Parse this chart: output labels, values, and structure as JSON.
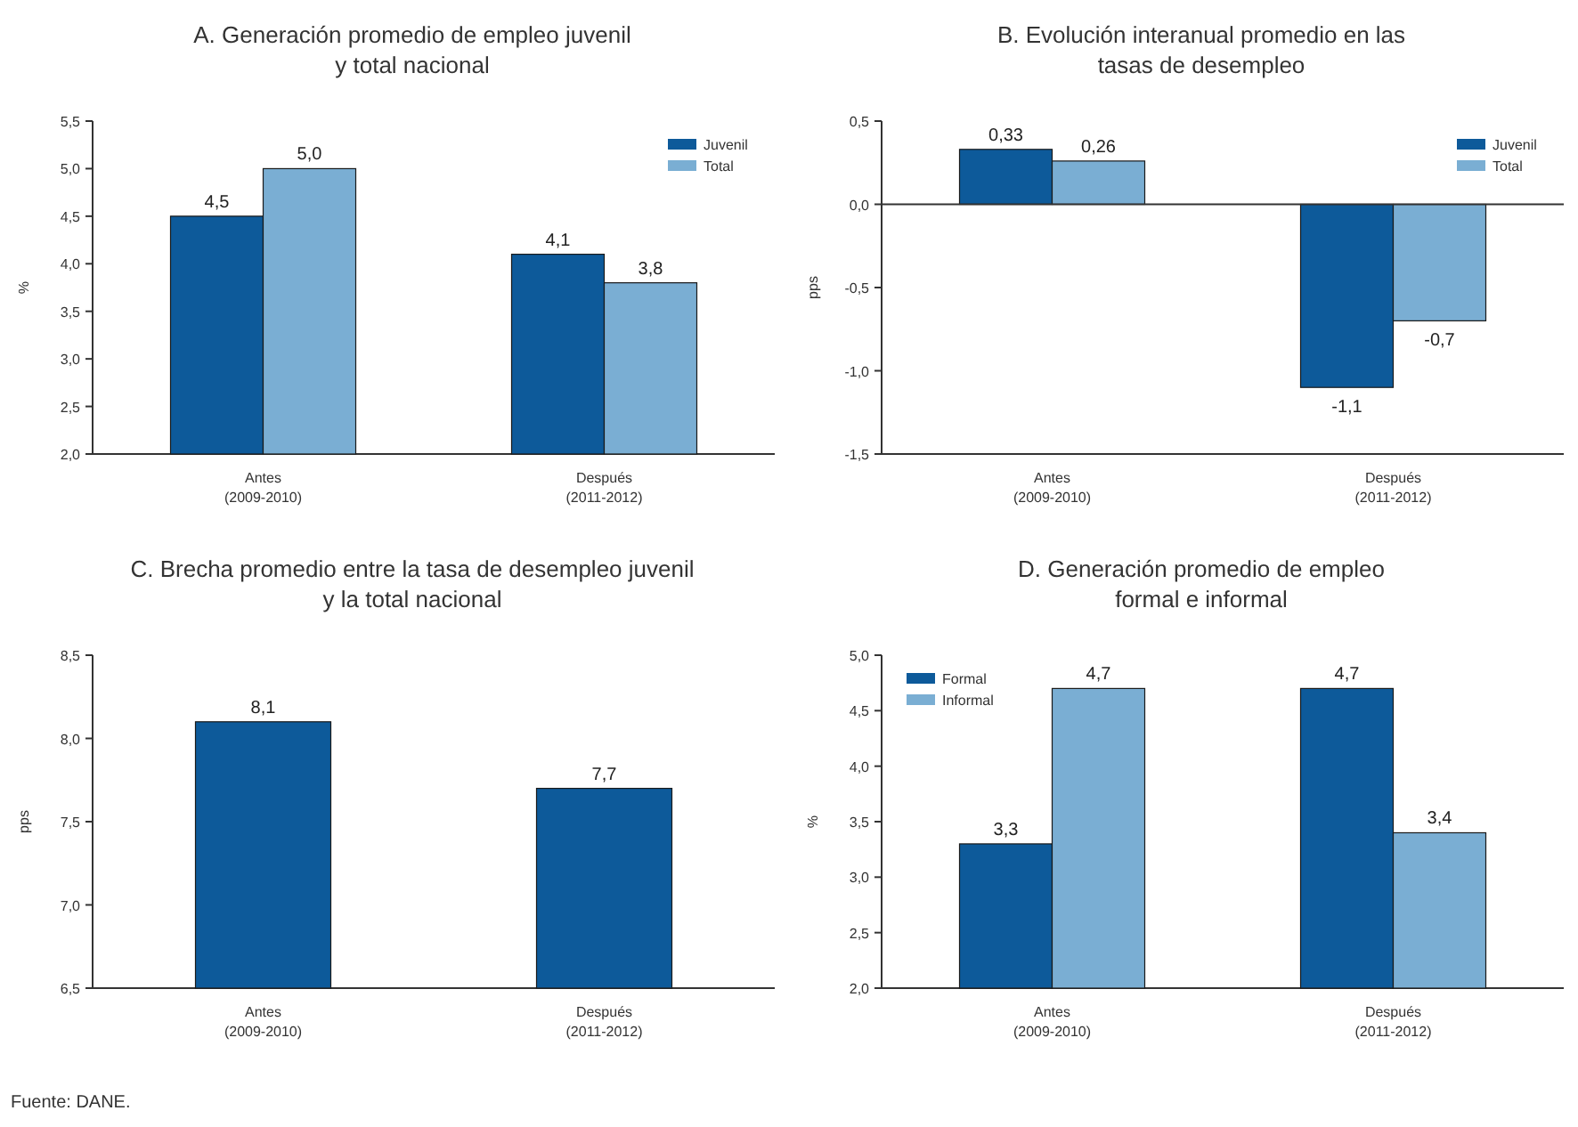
{
  "chart_data": [
    {
      "type": "bar",
      "title": "A. Generación promedio de empleo juvenil\ny total nacional",
      "ylabel": "%",
      "categories": [
        "Antes\n(2009-2010)",
        "Después\n(2011-2012)"
      ],
      "series": [
        {
          "name": "Juvenil",
          "color": "#0d5a9a",
          "values": [
            4.5,
            4.1
          ],
          "value_labels": [
            "4,5",
            "4,1"
          ]
        },
        {
          "name": "Total",
          "color": "#7aaed3",
          "values": [
            5.0,
            3.8
          ],
          "value_labels": [
            "5,0",
            "3,8"
          ]
        }
      ],
      "ylim": [
        2.0,
        5.5
      ],
      "yticks": [
        {
          "value": 2.0,
          "label": "2,0"
        },
        {
          "value": 2.5,
          "label": "2,5"
        },
        {
          "value": 3.0,
          "label": "3,0"
        },
        {
          "value": 3.5,
          "label": "3,5"
        },
        {
          "value": 4.0,
          "label": "4,0"
        },
        {
          "value": 4.5,
          "label": "4,5"
        },
        {
          "value": 5.0,
          "label": "5,0"
        },
        {
          "value": 5.5,
          "label": "5,5"
        }
      ],
      "grid": false,
      "legend": "top right"
    },
    {
      "type": "bar",
      "title": "B. Evolución interanual promedio en las\ntasas de desempleo",
      "ylabel": "pps",
      "categories": [
        "Antes\n(2009-2010)",
        "Después\n(2011-2012)"
      ],
      "series": [
        {
          "name": "Juvenil",
          "color": "#0d5a9a",
          "values": [
            0.33,
            -1.1
          ],
          "value_labels": [
            "0,33",
            "-1,1"
          ]
        },
        {
          "name": "Total",
          "color": "#7aaed3",
          "values": [
            0.26,
            -0.7
          ],
          "value_labels": [
            "0,26",
            "-0,7"
          ]
        }
      ],
      "ylim": [
        -1.5,
        0.5
      ],
      "yticks": [
        {
          "value": -1.5,
          "label": "-1,5"
        },
        {
          "value": -1.0,
          "label": "-1,0"
        },
        {
          "value": -0.5,
          "label": "-0,5"
        },
        {
          "value": 0.0,
          "label": "0,0"
        },
        {
          "value": 0.5,
          "label": "0,5"
        }
      ],
      "ref_lines": [
        {
          "axis": "y",
          "value": 0,
          "color": "#333333"
        }
      ],
      "legend": "top right"
    },
    {
      "type": "bar",
      "title": "C. Brecha promedio entre la tasa de desempleo juvenil\ny la total nacional",
      "ylabel": "pps",
      "categories": [
        "Antes\n(2009-2010)",
        "Después\n(2011-2012)"
      ],
      "series": [
        {
          "color": "#0d5a9a",
          "values": [
            8.1,
            7.7
          ],
          "value_labels": [
            "8,1",
            "7,7"
          ]
        }
      ],
      "ylim": [
        6.5,
        8.5
      ],
      "yticks": [
        {
          "value": 6.5,
          "label": "6,5"
        },
        {
          "value": 7.0,
          "label": "7,0"
        },
        {
          "value": 7.5,
          "label": "7,5"
        },
        {
          "value": 8.0,
          "label": "8,0"
        },
        {
          "value": 8.5,
          "label": "8,5"
        }
      ],
      "grid": false,
      "legend": false,
      "annotations": [
        "Fuente: DANE."
      ]
    },
    {
      "type": "bar",
      "title": "D. Generación promedio de empleo\nformal e informal",
      "ylabel": "%",
      "categories": [
        "Antes\n(2009-2010)",
        "Después\n(2011-2012)"
      ],
      "series": [
        {
          "name": "Formal",
          "color": "#0d5a9a",
          "values": [
            3.3,
            4.7
          ],
          "value_labels": [
            "3,3",
            "4,7"
          ]
        },
        {
          "name": "Informal",
          "color": "#7aaed3",
          "values": [
            4.7,
            3.4
          ],
          "value_labels": [
            "4,7",
            "3,4"
          ]
        }
      ],
      "ylim": [
        2.0,
        5.0
      ],
      "yticks": [
        {
          "value": 2.0,
          "label": "2,0"
        },
        {
          "value": 2.5,
          "label": "2,5"
        },
        {
          "value": 3.0,
          "label": "3,0"
        },
        {
          "value": 3.5,
          "label": "3,5"
        },
        {
          "value": 4.0,
          "label": "4,0"
        },
        {
          "value": 4.5,
          "label": "4,5"
        },
        {
          "value": 5.0,
          "label": "5,0"
        }
      ],
      "grid": false,
      "legend": "top left"
    }
  ]
}
